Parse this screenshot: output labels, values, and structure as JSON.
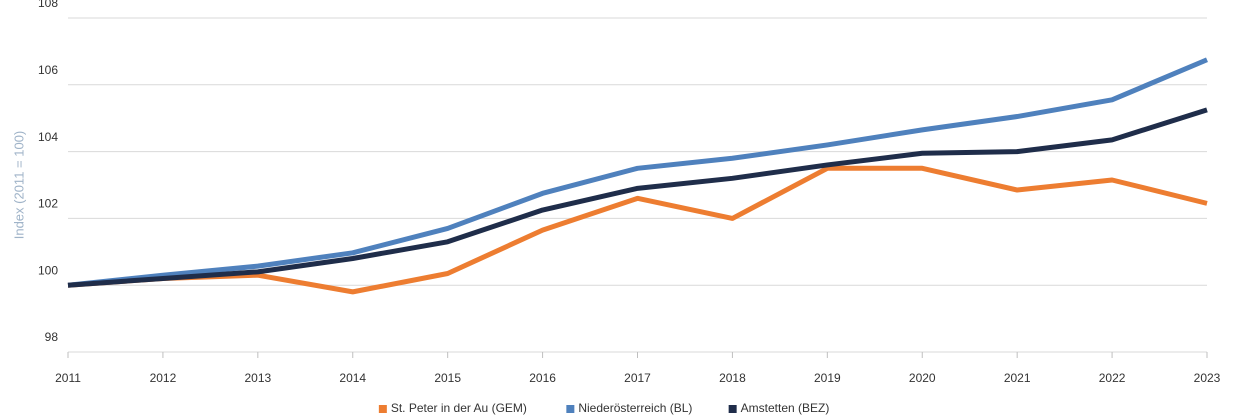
{
  "chart_data": {
    "type": "line",
    "y_label": "Index (2011 = 100)",
    "categories": [
      "2011",
      "2012",
      "2013",
      "2014",
      "2015",
      "2016",
      "2017",
      "2018",
      "2019",
      "2020",
      "2021",
      "2022",
      "2023"
    ],
    "series": [
      {
        "name": "St. Peter in der Au (GEM)",
        "color": "#ed7d31",
        "values": [
          100,
          100.2,
          100.3,
          99.8,
          100.35,
          101.65,
          102.6,
          102.0,
          103.5,
          103.5,
          102.85,
          103.15,
          102.45
        ]
      },
      {
        "name": "Niederösterreich (BL)",
        "color": "#4f81bd",
        "values": [
          100,
          100.3,
          100.57,
          100.97,
          101.7,
          102.75,
          103.5,
          103.8,
          104.2,
          104.65,
          105.05,
          105.55,
          106.75
        ]
      },
      {
        "name": "Amstetten (BEZ)",
        "color": "#1f2d4a",
        "values": [
          100,
          100.2,
          100.4,
          100.8,
          101.3,
          102.25,
          102.9,
          103.2,
          103.6,
          103.95,
          104.0,
          104.35,
          105.25
        ]
      }
    ],
    "ylim": [
      98,
      108
    ],
    "yticks": [
      98,
      100,
      102,
      104,
      106,
      108
    ],
    "grid": true,
    "legend": "bottom"
  }
}
